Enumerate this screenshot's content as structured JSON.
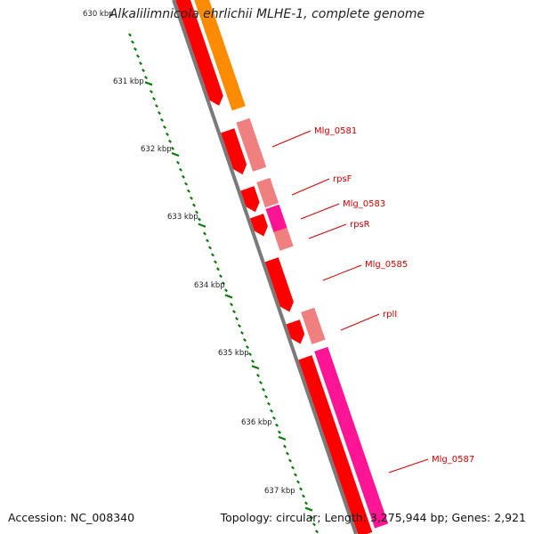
{
  "title": "Alkalilimnicola ehrlichii MLHE-1, complete genome",
  "footer": {
    "accession": "Accession: NC_008340",
    "summary": "Topology: circular; Length: 3,275,944 bp; Genes: 2,921"
  },
  "ruler": {
    "labels": [
      "630 kbp",
      "631 kbp",
      "632 kbp",
      "633 kbp",
      "634 kbp",
      "635 kbp",
      "636 kbp",
      "637 kbp"
    ],
    "color": "#0a7a0a"
  },
  "genes": [
    {
      "name": "Mlg_0581"
    },
    {
      "name": "rpsF"
    },
    {
      "name": "Mlg_0583"
    },
    {
      "name": "rpsR"
    },
    {
      "name": "Mlg_0585"
    },
    {
      "name": "rplI"
    },
    {
      "name": "Mlg_0587"
    }
  ],
  "colors": {
    "backbone": "#7a7a7a",
    "red": "#ff0000",
    "dark_red": "#c80000",
    "orange": "#ff8c00",
    "salmon": "#f08080",
    "pink": "#ff1493",
    "label": "#d40000"
  }
}
